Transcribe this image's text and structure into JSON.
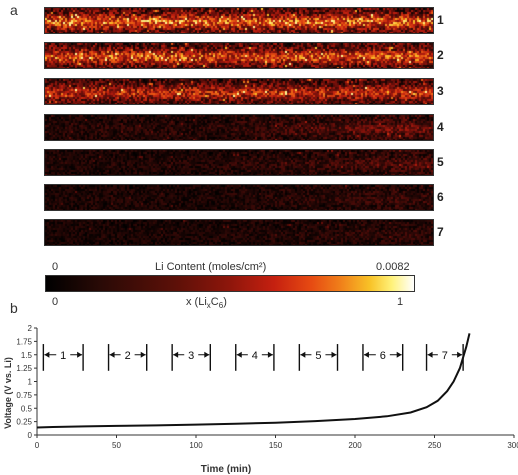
{
  "figure": {
    "panel_a_label": "a",
    "panel_b_label": "b",
    "strip_numbers": [
      "1",
      "2",
      "3",
      "4",
      "5",
      "6",
      "7"
    ],
    "strip_intensity": [
      1.0,
      0.95,
      0.85,
      0.55,
      0.4,
      0.28,
      0.22
    ],
    "colorbar": {
      "top_min": "0",
      "top_title": "Li Content (moles/cm²)",
      "top_max": "0.0082",
      "bottom_min": "0",
      "bottom_max": "1",
      "bottom_label_prefix": "x (Li",
      "bottom_label_sub_x": "x",
      "bottom_label_c": "C",
      "bottom_label_sub_6": "6",
      "bottom_label_suffix": ")"
    }
  },
  "chart_data": {
    "type": "line",
    "xlabel": "Time (min)",
    "ylabel": "Voltage (V vs. Li)",
    "xlim": [
      0,
      300
    ],
    "ylim": [
      0,
      2
    ],
    "xticks": [
      0,
      50,
      100,
      150,
      200,
      250,
      300
    ],
    "yticks": [
      0,
      0.25,
      0.5,
      0.75,
      1,
      1.25,
      1.5,
      1.75,
      2
    ],
    "ytick_labels": [
      "0",
      "0.25",
      "0.5",
      "0.75",
      "1",
      "1.25",
      "1.5",
      "1.75",
      "2"
    ],
    "x": [
      0,
      10,
      30,
      50,
      75,
      100,
      125,
      150,
      175,
      200,
      220,
      235,
      245,
      252,
      258,
      262,
      266,
      270,
      272
    ],
    "y": [
      0.14,
      0.15,
      0.16,
      0.17,
      0.18,
      0.195,
      0.21,
      0.23,
      0.26,
      0.3,
      0.35,
      0.42,
      0.52,
      0.64,
      0.82,
      1.0,
      1.25,
      1.65,
      1.9
    ],
    "intervals": [
      {
        "label": "1",
        "x0": 4,
        "x1": 29
      },
      {
        "label": "2",
        "x0": 45,
        "x1": 69
      },
      {
        "label": "3",
        "x0": 85,
        "x1": 109
      },
      {
        "label": "4",
        "x0": 125,
        "x1": 149
      },
      {
        "label": "5",
        "x0": 165,
        "x1": 189
      },
      {
        "label": "6",
        "x0": 205,
        "x1": 230
      },
      {
        "label": "7",
        "x0": 245,
        "x1": 268
      }
    ],
    "interval_ylim": [
      1.2,
      1.7
    ],
    "interval_arrow_y": 1.5
  }
}
